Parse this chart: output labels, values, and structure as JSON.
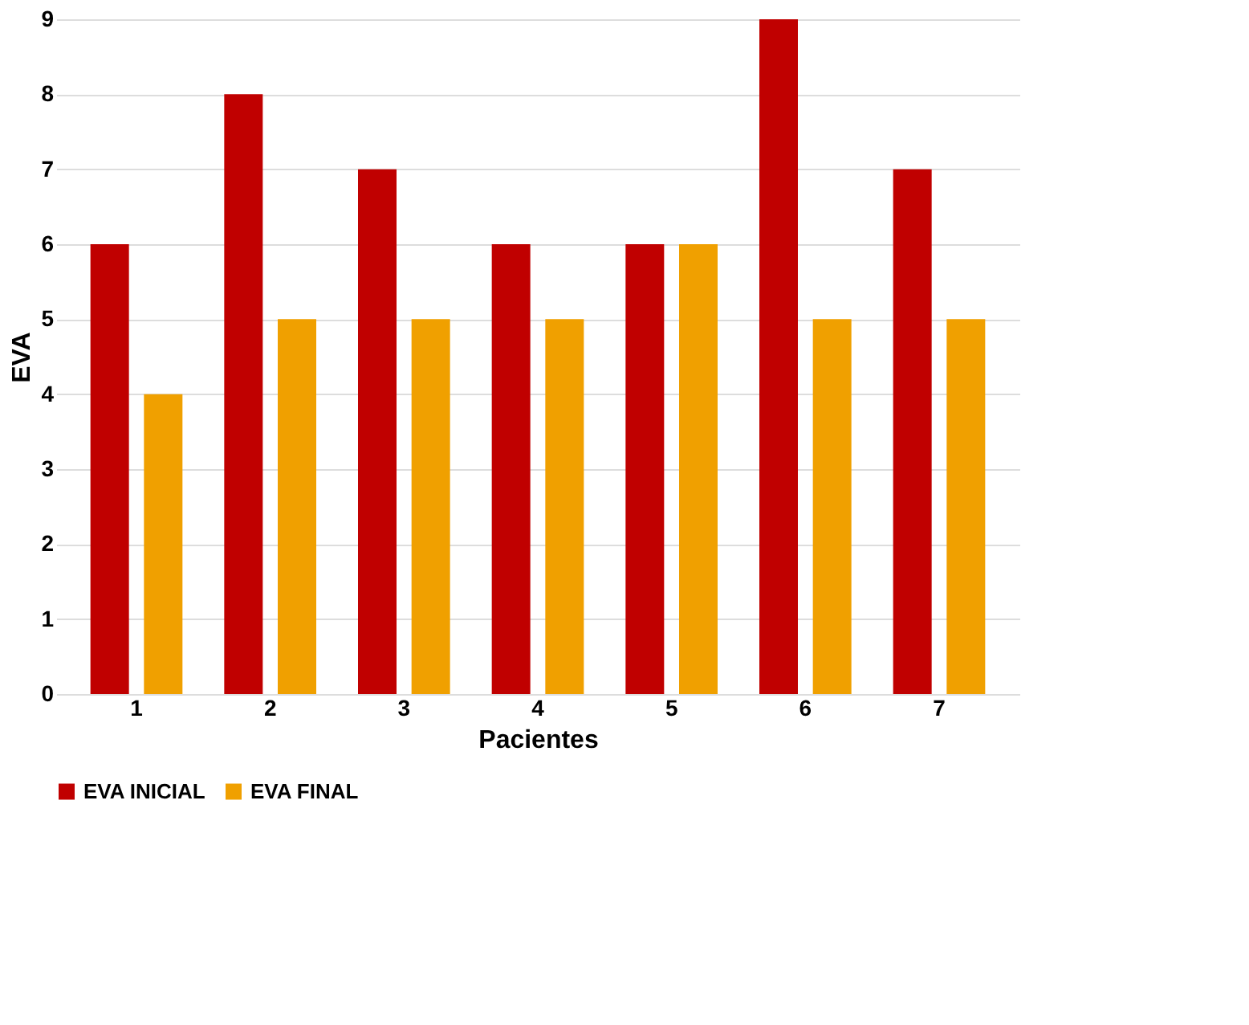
{
  "chart_data": {
    "type": "bar",
    "xlabel": "Pacientes",
    "ylabel": "EVA",
    "categories": [
      "1",
      "2",
      "3",
      "4",
      "5",
      "6",
      "7"
    ],
    "series": [
      {
        "name": "EVA INICIAL",
        "color": "#c00000",
        "values": [
          6,
          8,
          7,
          6,
          6,
          9,
          7
        ]
      },
      {
        "name": "EVA FINAL",
        "color": "#f0a000",
        "values": [
          4,
          5,
          5,
          5,
          6,
          5,
          5
        ]
      }
    ],
    "ylim": [
      0,
      9
    ],
    "yticks": [
      0,
      1,
      2,
      3,
      4,
      5,
      6,
      7,
      8,
      9
    ],
    "grid": "y",
    "legend": "bottom"
  }
}
